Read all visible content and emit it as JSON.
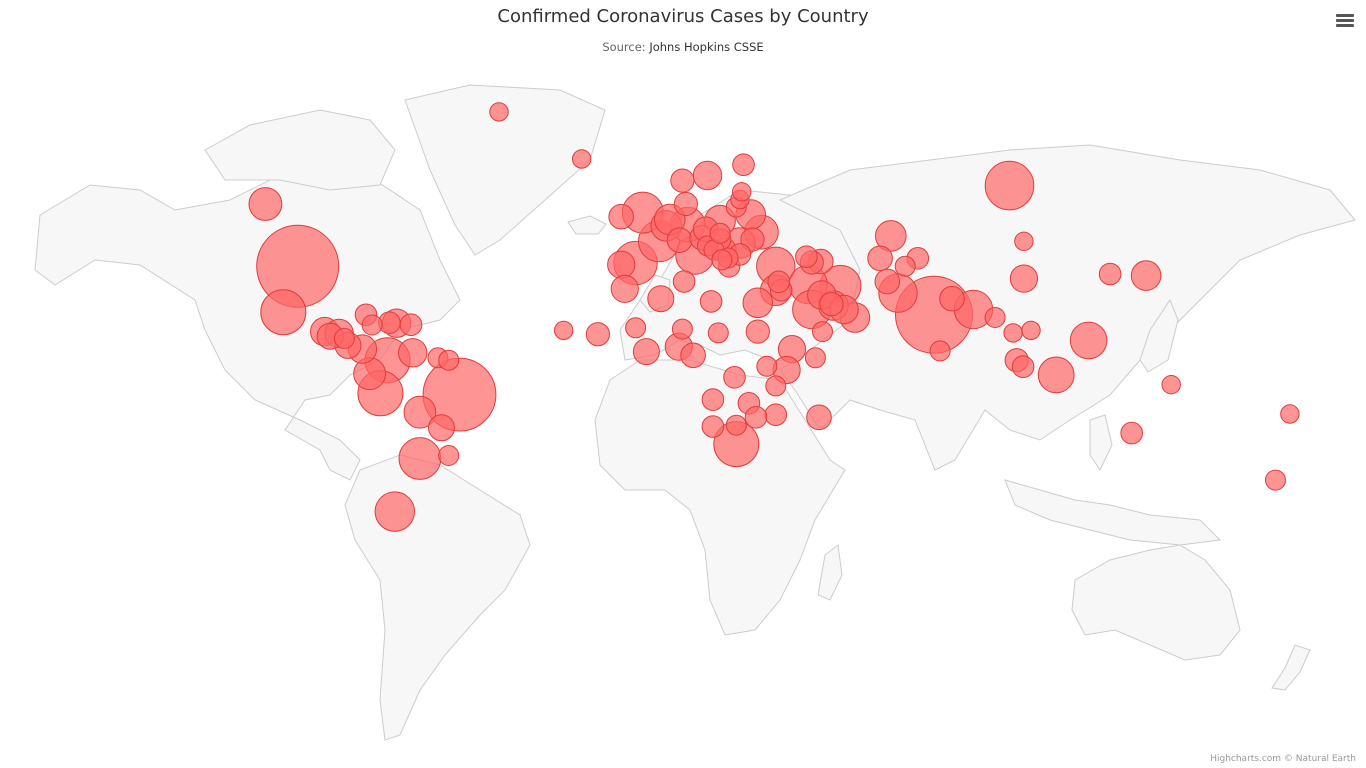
{
  "title": "Confirmed Coronavirus Cases by Country",
  "subtitle_prefix": "Source: ",
  "subtitle_link": "Johns Hopkins CSSE",
  "credits": "Highcharts.com © Natural Earth",
  "menu_icon": "hamburger-menu-icon",
  "colors": {
    "land": "#f7f7f7",
    "border": "#cccccc",
    "bubble": "#ff6666",
    "bubble_stroke": "#e23b3b"
  },
  "chart_data": {
    "type": "mapbubble",
    "series": [
      {
        "name": "United States",
        "lon": -98,
        "lat": 39,
        "z": 100
      },
      {
        "name": "India",
        "lon": 79,
        "lat": 22,
        "z": 88
      },
      {
        "name": "Brazil",
        "lon": -53,
        "lat": -10,
        "z": 79
      },
      {
        "name": "Russia",
        "lon": 100,
        "lat": 60,
        "z": 35
      },
      {
        "name": "Mexico",
        "lon": -102,
        "lat": 23,
        "z": 30
      },
      {
        "name": "Colombia",
        "lon": -73,
        "lat": 4,
        "z": 30
      },
      {
        "name": "Peru",
        "lon": -75,
        "lat": -9.5,
        "z": 30
      },
      {
        "name": "South Africa",
        "lon": 24,
        "lat": -29,
        "z": 30
      },
      {
        "name": "Spain",
        "lon": -4,
        "lat": 40,
        "z": 28
      },
      {
        "name": "France",
        "lon": 2.5,
        "lat": 46.5,
        "z": 25
      },
      {
        "name": "United Kingdom",
        "lon": -2,
        "lat": 54,
        "z": 25
      },
      {
        "name": "Argentina",
        "lon": -64,
        "lat": -34,
        "z": 26
      },
      {
        "name": "Iran",
        "lon": 53,
        "lat": 32.5,
        "z": 25
      },
      {
        "name": "Chile",
        "lon": -71,
        "lat": -50,
        "z": 23
      },
      {
        "name": "Italy",
        "lon": 12.5,
        "lat": 42.5,
        "z": 22
      },
      {
        "name": "Turkey",
        "lon": 35,
        "lat": 39,
        "z": 22
      },
      {
        "name": "Iraq",
        "lon": 44,
        "lat": 33,
        "z": 22
      },
      {
        "name": "Bangladesh",
        "lon": 90,
        "lat": 24,
        "z": 22
      },
      {
        "name": "Saudi Arabia",
        "lon": 45,
        "lat": 24,
        "z": 22
      },
      {
        "name": "Pakistan",
        "lon": 69,
        "lat": 30,
        "z": 22
      },
      {
        "name": "Germany",
        "lon": 10.5,
        "lat": 51,
        "z": 18
      },
      {
        "name": "Philippines",
        "lon": 122,
        "lat": 12,
        "z": 20
      },
      {
        "name": "Indonesia",
        "lon": 113,
        "lat": -2,
        "z": 19
      },
      {
        "name": "Ukraine",
        "lon": 31,
        "lat": 49,
        "z": 17
      },
      {
        "name": "Canada",
        "lon": -107,
        "lat": 56,
        "z": 16
      },
      {
        "name": "Bolivia",
        "lon": -64,
        "lat": -17,
        "z": 15
      },
      {
        "name": "Ecuador",
        "lon": -78,
        "lat": -1.5,
        "z": 15
      },
      {
        "name": "Kazakhstan",
        "lon": 67,
        "lat": 48,
        "z": 14
      },
      {
        "name": "Romania",
        "lon": 25,
        "lat": 46,
        "z": 14
      },
      {
        "name": "Belgium",
        "lon": 4.5,
        "lat": 50.7,
        "z": 14
      },
      {
        "name": "Netherlands",
        "lon": 5.5,
        "lat": 52.3,
        "z": 14
      },
      {
        "name": "Poland",
        "lon": 19.5,
        "lat": 52,
        "z": 14
      },
      {
        "name": "Israel",
        "lon": 35,
        "lat": 31,
        "z": 14
      },
      {
        "name": "Egypt",
        "lon": 30,
        "lat": 26.5,
        "z": 13
      },
      {
        "name": "Oman",
        "lon": 57,
        "lat": 21,
        "z": 13
      },
      {
        "name": "Belarus",
        "lon": 28,
        "lat": 53.5,
        "z": 13
      },
      {
        "name": "Japan",
        "lon": 138,
        "lat": 36,
        "z": 13
      },
      {
        "name": "Qatar",
        "lon": 51,
        "lat": 25.5,
        "z": 13
      },
      {
        "name": "Guatemala",
        "lon": -90.5,
        "lat": 15.5,
        "z": 12
      },
      {
        "name": "Honduras",
        "lon": -86.5,
        "lat": 14.8,
        "z": 12
      },
      {
        "name": "Dominican Republic",
        "lon": -70.5,
        "lat": 18.8,
        "z": 12
      },
      {
        "name": "Panama",
        "lon": -80,
        "lat": 8.5,
        "z": 12
      },
      {
        "name": "Venezuela",
        "lon": -66,
        "lat": 7,
        "z": 12
      },
      {
        "name": "Kuwait",
        "lon": 47.8,
        "lat": 29.3,
        "z": 12
      },
      {
        "name": "UAE",
        "lon": 54,
        "lat": 24,
        "z": 12
      },
      {
        "name": "Sweden",
        "lon": 16,
        "lat": 62,
        "z": 12
      },
      {
        "name": "Portugal",
        "lon": -8,
        "lat": 39.5,
        "z": 11
      },
      {
        "name": "Morocco",
        "lon": -7,
        "lat": 31.5,
        "z": 11
      },
      {
        "name": "Ethiopia",
        "lon": 39.5,
        "lat": 8.5,
        "z": 11
      },
      {
        "name": "Kenya",
        "lon": 38,
        "lat": 0,
        "z": 11
      },
      {
        "name": "Nigeria",
        "lon": 8,
        "lat": 9.5,
        "z": 11
      },
      {
        "name": "Ghana",
        "lon": -1,
        "lat": 7.5,
        "z": 10
      },
      {
        "name": "China",
        "lon": 104,
        "lat": 35,
        "z": 11
      },
      {
        "name": "Costa Rica",
        "lon": -84,
        "lat": 10,
        "z": 10
      },
      {
        "name": "El Salvador",
        "lon": -89,
        "lat": 13.7,
        "z": 10
      },
      {
        "name": "Algeria",
        "lon": 3,
        "lat": 28,
        "z": 10
      },
      {
        "name": "Paraguay",
        "lon": -58,
        "lat": -23,
        "z": 10
      },
      {
        "name": "Cameroon",
        "lon": 12,
        "lat": 6,
        "z": 9
      },
      {
        "name": "Madagascar",
        "lon": 47,
        "lat": -19,
        "z": 9
      },
      {
        "name": "Azerbaijan",
        "lon": 47.5,
        "lat": 40.5,
        "z": 9
      },
      {
        "name": "Serbia",
        "lon": 20.5,
        "lat": 44,
        "z": 9
      },
      {
        "name": "Switzerland",
        "lon": 8.2,
        "lat": 46.8,
        "z": 9
      },
      {
        "name": "Austria",
        "lon": 14.5,
        "lat": 47.5,
        "z": 9
      },
      {
        "name": "Czechia",
        "lon": 15.5,
        "lat": 49.8,
        "z": 9
      },
      {
        "name": "Ireland",
        "lon": -8,
        "lat": 53,
        "z": 9
      },
      {
        "name": "Uzbekistan",
        "lon": 64,
        "lat": 41.5,
        "z": 9
      },
      {
        "name": "Bahrain",
        "lon": 50.5,
        "lat": 26,
        "z": 8
      },
      {
        "name": "Sudan",
        "lon": 30,
        "lat": 15.5,
        "z": 8
      },
      {
        "name": "Senegal",
        "lon": -14.5,
        "lat": 14.5,
        "z": 8
      },
      {
        "name": "Afghanistan",
        "lon": 66,
        "lat": 34,
        "z": 9
      },
      {
        "name": "Nepal",
        "lon": 84,
        "lat": 28,
        "z": 9
      },
      {
        "name": "Moldova",
        "lon": 28.5,
        "lat": 47,
        "z": 8
      },
      {
        "name": "Armenia",
        "lon": 45,
        "lat": 40.2,
        "z": 8
      },
      {
        "name": "Denmark",
        "lon": 10,
        "lat": 56,
        "z": 8
      },
      {
        "name": "Norway",
        "lon": 9,
        "lat": 61,
        "z": 8
      },
      {
        "name": "Finland",
        "lon": 26,
        "lat": 64,
        "z": 7
      },
      {
        "name": "Zambia",
        "lon": 27.5,
        "lat": -13.5,
        "z": 7
      },
      {
        "name": "Mozambique",
        "lon": 35,
        "lat": -18,
        "z": 7
      },
      {
        "name": "Zimbabwe",
        "lon": 29.5,
        "lat": -19,
        "z": 7
      },
      {
        "name": "Australia",
        "lon": 134,
        "lat": -25,
        "z": 7
      },
      {
        "name": "New Zealand",
        "lon": 174,
        "lat": -41,
        "z": 6
      },
      {
        "name": "South Korea",
        "lon": 128,
        "lat": 36.5,
        "z": 7
      },
      {
        "name": "Malaysia",
        "lon": 102,
        "lat": 4,
        "z": 8
      },
      {
        "name": "Singapore",
        "lon": 103.8,
        "lat": 1.35,
        "z": 7
      },
      {
        "name": "Sri Lanka",
        "lon": 80.7,
        "lat": 7.8,
        "z": 6
      },
      {
        "name": "Kyrgyzstan",
        "lon": 74.5,
        "lat": 41.5,
        "z": 7
      },
      {
        "name": "Haiti",
        "lon": -72.5,
        "lat": 19,
        "z": 7
      },
      {
        "name": "Cuba",
        "lon": -79,
        "lat": 22,
        "z": 7
      },
      {
        "name": "Puerto Rico",
        "lon": -66.5,
        "lat": 18.2,
        "z": 7
      },
      {
        "name": "Jamaica",
        "lon": -77.3,
        "lat": 18.1,
        "z": 6
      },
      {
        "name": "Nicaragua",
        "lon": -85,
        "lat": 12.8,
        "z": 6
      },
      {
        "name": "Uruguay",
        "lon": -56,
        "lat": -33,
        "z": 6
      },
      {
        "name": "Guyana",
        "lon": -59,
        "lat": 5,
        "z": 6
      },
      {
        "name": "Suriname",
        "lon": -56,
        "lat": 4,
        "z": 6
      },
      {
        "name": "Greenland",
        "lon": -42,
        "lat": 72,
        "z": 5
      },
      {
        "name": "Iceland",
        "lon": -19,
        "lat": 65,
        "z": 5
      },
      {
        "name": "Cape Verde",
        "lon": -24,
        "lat": 16,
        "z": 5
      },
      {
        "name": "Tunisia",
        "lon": 9.5,
        "lat": 34,
        "z": 7
      },
      {
        "name": "Libya",
        "lon": 17,
        "lat": 27,
        "z": 7
      },
      {
        "name": "Mali",
        "lon": -4,
        "lat": 17,
        "z": 6
      },
      {
        "name": "Niger",
        "lon": 9,
        "lat": 16.5,
        "z": 6
      },
      {
        "name": "Chad",
        "lon": 19,
        "lat": 15,
        "z": 6
      },
      {
        "name": "DR Congo",
        "lon": 23.5,
        "lat": -3,
        "z": 7
      },
      {
        "name": "Angola",
        "lon": 17.5,
        "lat": -12,
        "z": 7
      },
      {
        "name": "Namibia",
        "lon": 17.5,
        "lat": -22.5,
        "z": 7
      },
      {
        "name": "Botswana",
        "lon": 24,
        "lat": -22,
        "z": 6
      },
      {
        "name": "Tanzania",
        "lon": 35,
        "lat": -6.5,
        "z": 6
      },
      {
        "name": "Uganda",
        "lon": 32.5,
        "lat": 1.5,
        "z": 6
      },
      {
        "name": "Somalia",
        "lon": 46,
        "lat": 5,
        "z": 6
      },
      {
        "name": "Yemen",
        "lon": 48,
        "lat": 15.5,
        "z": 6
      },
      {
        "name": "Jordan",
        "lon": 36.5,
        "lat": 31,
        "z": 7
      },
      {
        "name": "Lebanon",
        "lon": 35.8,
        "lat": 33.9,
        "z": 7
      },
      {
        "name": "Georgia",
        "lon": 43.5,
        "lat": 42,
        "z": 7
      },
      {
        "name": "Greece",
        "lon": 22,
        "lat": 39,
        "z": 7
      },
      {
        "name": "Bulgaria",
        "lon": 25,
        "lat": 42.7,
        "z": 7
      },
      {
        "name": "Hungary",
        "lon": 19.5,
        "lat": 47,
        "z": 7
      },
      {
        "name": "Croatia",
        "lon": 16,
        "lat": 45.2,
        "z": 6
      },
      {
        "name": "Bosnia and Herzegovina",
        "lon": 17.8,
        "lat": 44,
        "z": 6
      },
      {
        "name": "North Macedonia",
        "lon": 21.7,
        "lat": 41.6,
        "z": 6
      },
      {
        "name": "Albania",
        "lon": 20,
        "lat": 41,
        "z": 6
      },
      {
        "name": "Slovakia",
        "lon": 19.5,
        "lat": 48.7,
        "z": 6
      },
      {
        "name": "Lithuania",
        "lon": 24,
        "lat": 55.3,
        "z": 6
      },
      {
        "name": "Latvia",
        "lon": 25,
        "lat": 57,
        "z": 5
      },
      {
        "name": "Estonia",
        "lon": 25.5,
        "lat": 58.7,
        "z": 5
      },
      {
        "name": "Tajikistan",
        "lon": 71,
        "lat": 39,
        "z": 6
      },
      {
        "name": "Myanmar",
        "lon": 96,
        "lat": 21,
        "z": 6
      },
      {
        "name": "Thailand",
        "lon": 101,
        "lat": 15,
        "z": 5
      },
      {
        "name": "Vietnam",
        "lon": 106,
        "lat": 16,
        "z": 5
      },
      {
        "name": "Mongolia",
        "lon": 104,
        "lat": 46.5,
        "z": 5
      },
      {
        "name": "Papua New Guinea",
        "lon": 145,
        "lat": -6,
        "z": 5
      },
      {
        "name": "Fiji",
        "lon": 178,
        "lat": -17.7,
        "z": 5
      }
    ]
  }
}
